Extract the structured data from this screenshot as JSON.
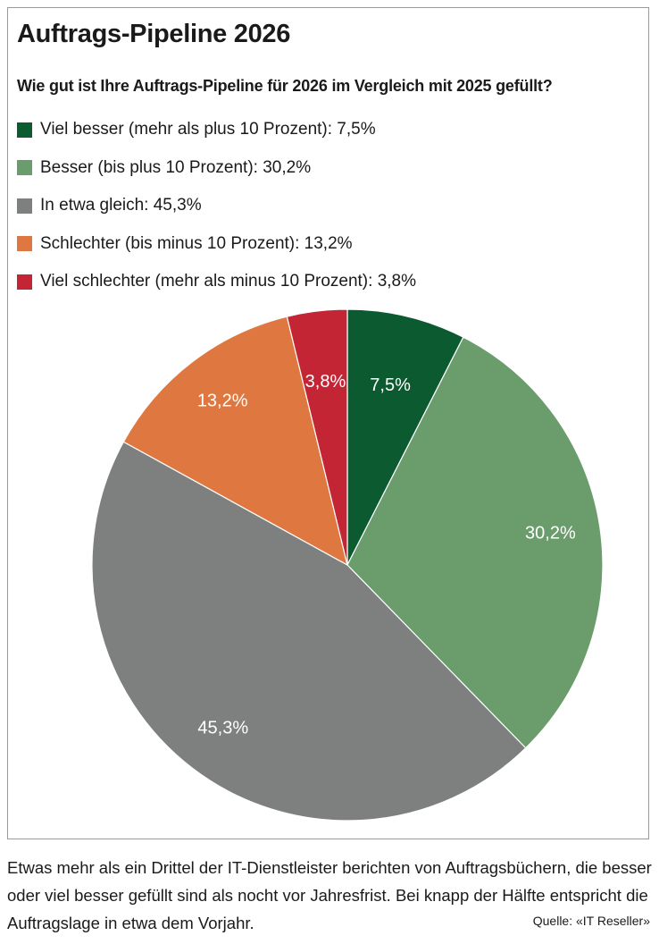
{
  "title": "Auftrags-Pipeline 2026",
  "subtitle": "Wie gut ist Ihre Auftrags-Pipeline für 2026 im Vergleich mit 2025 gefüllt?",
  "legend": [
    {
      "label": "Viel besser (mehr als plus 10 Prozent): 7,5%",
      "color": "#0c5a30"
    },
    {
      "label": "Besser (bis plus 10 Prozent): 30,2%",
      "color": "#6a9c6c"
    },
    {
      "label": "In etwa gleich: 45,3%",
      "color": "#7d807f"
    },
    {
      "label": "Schlechter (bis minus 10 Prozent): 13,2%",
      "color": "#df7740"
    },
    {
      "label": "Viel schlechter (mehr als minus 10 Prozent): 3,8%",
      "color": "#c32535"
    }
  ],
  "chart_data": {
    "type": "pie",
    "title": "Auftrags-Pipeline 2026",
    "subtitle": "Wie gut ist Ihre Auftrags-Pipeline für 2026 im Vergleich mit 2025 gefüllt?",
    "categories": [
      "Viel besser (mehr als plus 10 Prozent)",
      "Besser (bis plus 10 Prozent)",
      "In etwa gleich",
      "Schlechter (bis minus 10 Prozent)",
      "Viel schlechter (mehr als minus 10 Prozent)"
    ],
    "values": [
      7.5,
      30.2,
      45.3,
      13.2,
      3.8
    ],
    "data_labels": [
      "7,5%",
      "30,2%",
      "45,3%",
      "13,2%",
      "3,8%"
    ],
    "colors": [
      "#0c5a30",
      "#6a9c6c",
      "#7d807f",
      "#df7740",
      "#c32535"
    ],
    "legend_position": "top-left"
  },
  "caption": "Etwas mehr als ein Drittel der IT-Dienstleister berichten von Auftragsbüchern, die besser oder viel besser gefüllt sind als nocht vor Jahresfrist. Bei knapp der Hälfte entspricht die Auftragslage in etwa dem Vorjahr.",
  "source": "Quelle: «IT Reseller»"
}
